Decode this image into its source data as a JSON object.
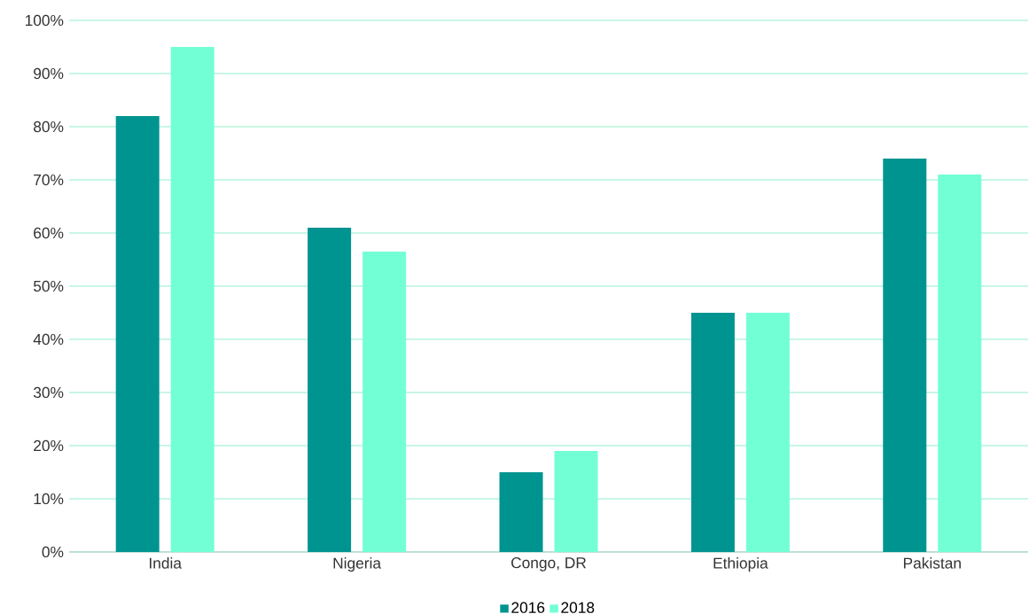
{
  "chart_data": {
    "type": "bar",
    "categories": [
      "India",
      "Nigeria",
      "Congo, DR",
      "Ethiopia",
      "Pakistan"
    ],
    "series": [
      {
        "name": "2016",
        "color": "#009490",
        "values": [
          82,
          61,
          15,
          45,
          74
        ]
      },
      {
        "name": "2018",
        "color": "#72ffd6",
        "values": [
          95,
          56.5,
          19,
          45,
          71
        ]
      }
    ],
    "ylim": [
      0,
      100
    ],
    "yticks": [
      {
        "value": 0,
        "label": "0%"
      },
      {
        "value": 10,
        "label": "10%"
      },
      {
        "value": 20,
        "label": "20%"
      },
      {
        "value": 30,
        "label": "30%"
      },
      {
        "value": 40,
        "label": "40%"
      },
      {
        "value": 50,
        "label": "50%"
      },
      {
        "value": 60,
        "label": "60%"
      },
      {
        "value": 70,
        "label": "70%"
      },
      {
        "value": 80,
        "label": "80%"
      },
      {
        "value": 90,
        "label": "90%"
      },
      {
        "value": 100,
        "label": "100%"
      }
    ],
    "grid": "y",
    "legend": "bottom"
  }
}
